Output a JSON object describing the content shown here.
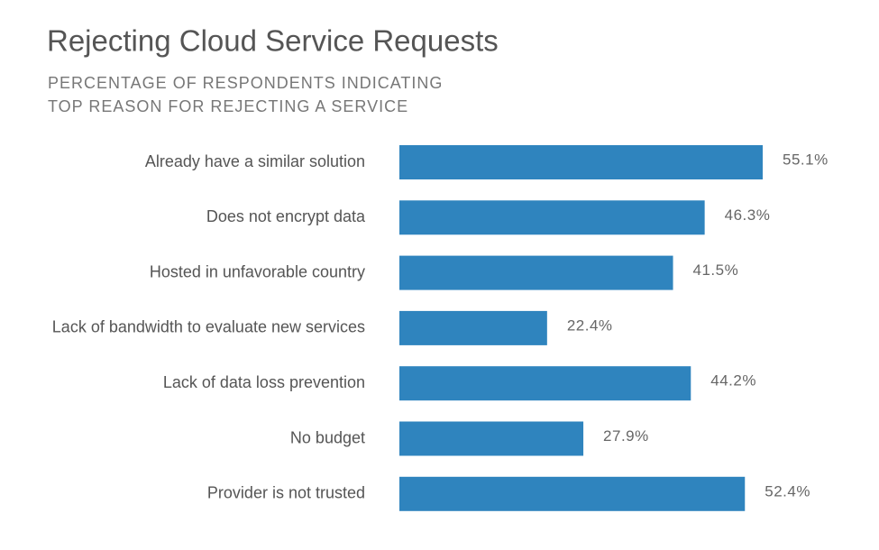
{
  "chart_data": {
    "type": "bar",
    "orientation": "horizontal",
    "title": "Rejecting Cloud Service Requests",
    "subtitle": [
      "PERCENTAGE OF RESPONDENTS INDICATING",
      "TOP REASON FOR REJECTING A SERVICE"
    ],
    "categories": [
      "Already have a similar solution",
      "Does not encrypt data",
      "Hosted in unfavorable country",
      "Lack of bandwidth to evaluate new services",
      "Lack of data loss prevention",
      "No budget",
      "Provider is not trusted"
    ],
    "values": [
      55.1,
      46.3,
      41.5,
      22.4,
      44.2,
      27.9,
      52.4
    ],
    "value_labels": [
      "55.1%",
      "46.3%",
      "41.5%",
      "22.4%",
      "44.2%",
      "27.9%",
      "52.4%"
    ],
    "color": "#2f84be"
  }
}
